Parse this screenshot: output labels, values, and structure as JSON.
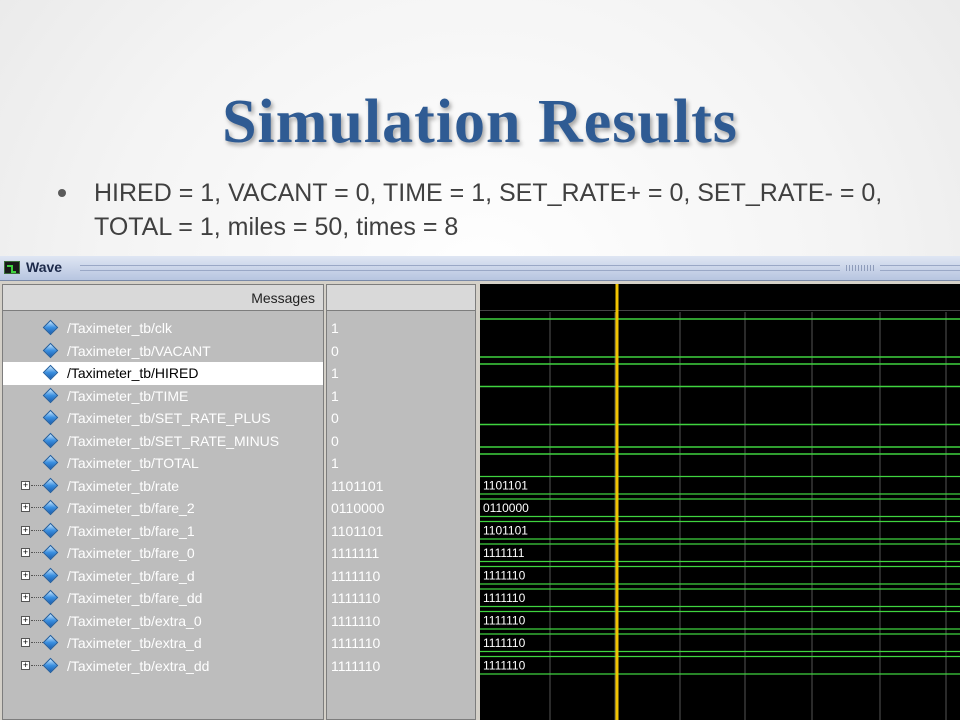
{
  "slide": {
    "title": "Simulation Results",
    "bullet": "HIRED = 1, VACANT  = 0, TIME = 1, SET_RATE+ = 0, SET_RATE- = 0, TOTAL = 1, miles  = 50, times = 8"
  },
  "window": {
    "title": "Wave",
    "messages_header": "Messages"
  },
  "signals": [
    {
      "name": "/Taximeter_tb/clk",
      "value": "1",
      "bus": false,
      "wave": "1"
    },
    {
      "name": "/Taximeter_tb/VACANT",
      "value": "0",
      "bus": false,
      "wave": "0"
    },
    {
      "name": "/Taximeter_tb/HIRED",
      "value": "1",
      "bus": false,
      "wave": "1",
      "selected": true
    },
    {
      "name": "/Taximeter_tb/TIME",
      "value": "1",
      "bus": false,
      "wave": "1"
    },
    {
      "name": "/Taximeter_tb/SET_RATE_PLUS",
      "value": "0",
      "bus": false,
      "wave": "0"
    },
    {
      "name": "/Taximeter_tb/SET_RATE_MINUS",
      "value": "0",
      "bus": false,
      "wave": "0"
    },
    {
      "name": "/Taximeter_tb/TOTAL",
      "value": "1",
      "bus": false,
      "wave": "1"
    },
    {
      "name": "/Taximeter_tb/rate",
      "value": "1101101",
      "bus": true,
      "wave": "1101101"
    },
    {
      "name": "/Taximeter_tb/fare_2",
      "value": "0110000",
      "bus": true,
      "wave": "0110000"
    },
    {
      "name": "/Taximeter_tb/fare_1",
      "value": "1101101",
      "bus": true,
      "wave": "1101101"
    },
    {
      "name": "/Taximeter_tb/fare_0",
      "value": "1111111",
      "bus": true,
      "wave": "1111111"
    },
    {
      "name": "/Taximeter_tb/fare_d",
      "value": "1111110",
      "bus": true,
      "wave": "1111110"
    },
    {
      "name": "/Taximeter_tb/fare_dd",
      "value": "1111110",
      "bus": true,
      "wave": "1111110"
    },
    {
      "name": "/Taximeter_tb/extra_0",
      "value": "1111110",
      "bus": true,
      "wave": "1111110"
    },
    {
      "name": "/Taximeter_tb/extra_d",
      "value": "1111110",
      "bus": true,
      "wave": "1111110"
    },
    {
      "name": "/Taximeter_tb/extra_dd",
      "value": "1111110",
      "bus": true,
      "wave": "1111110"
    }
  ],
  "colors": {
    "title": "#2f5b93",
    "wave_green": "#3fd33f",
    "cursor": "#f2c400",
    "grid": "#555555"
  }
}
